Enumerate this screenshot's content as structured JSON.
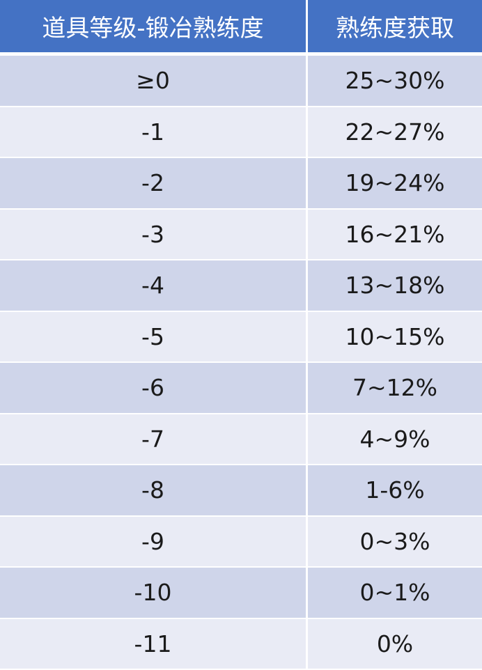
{
  "table": {
    "headers": [
      "道具等级-锻冶熟练度",
      "熟练度获取"
    ],
    "rows": [
      [
        "≥0",
        "25~30%"
      ],
      [
        "-1",
        "22~27%"
      ],
      [
        "-2",
        "19~24%"
      ],
      [
        "-3",
        "16~21%"
      ],
      [
        "-4",
        "13~18%"
      ],
      [
        "-5",
        "10~15%"
      ],
      [
        "-6",
        "7~12%"
      ],
      [
        "-7",
        "4~9%"
      ],
      [
        "-8",
        "1-6%"
      ],
      [
        "-9",
        "0~3%"
      ],
      [
        "-10",
        "0~1%"
      ],
      [
        "-11",
        "0%"
      ]
    ],
    "colors": {
      "header_bg": "#4472c4",
      "row_dark": "#cfd5ea",
      "row_light": "#e9ebf5",
      "header_text": "#ffffff",
      "body_text": "#1a1a1a"
    }
  }
}
